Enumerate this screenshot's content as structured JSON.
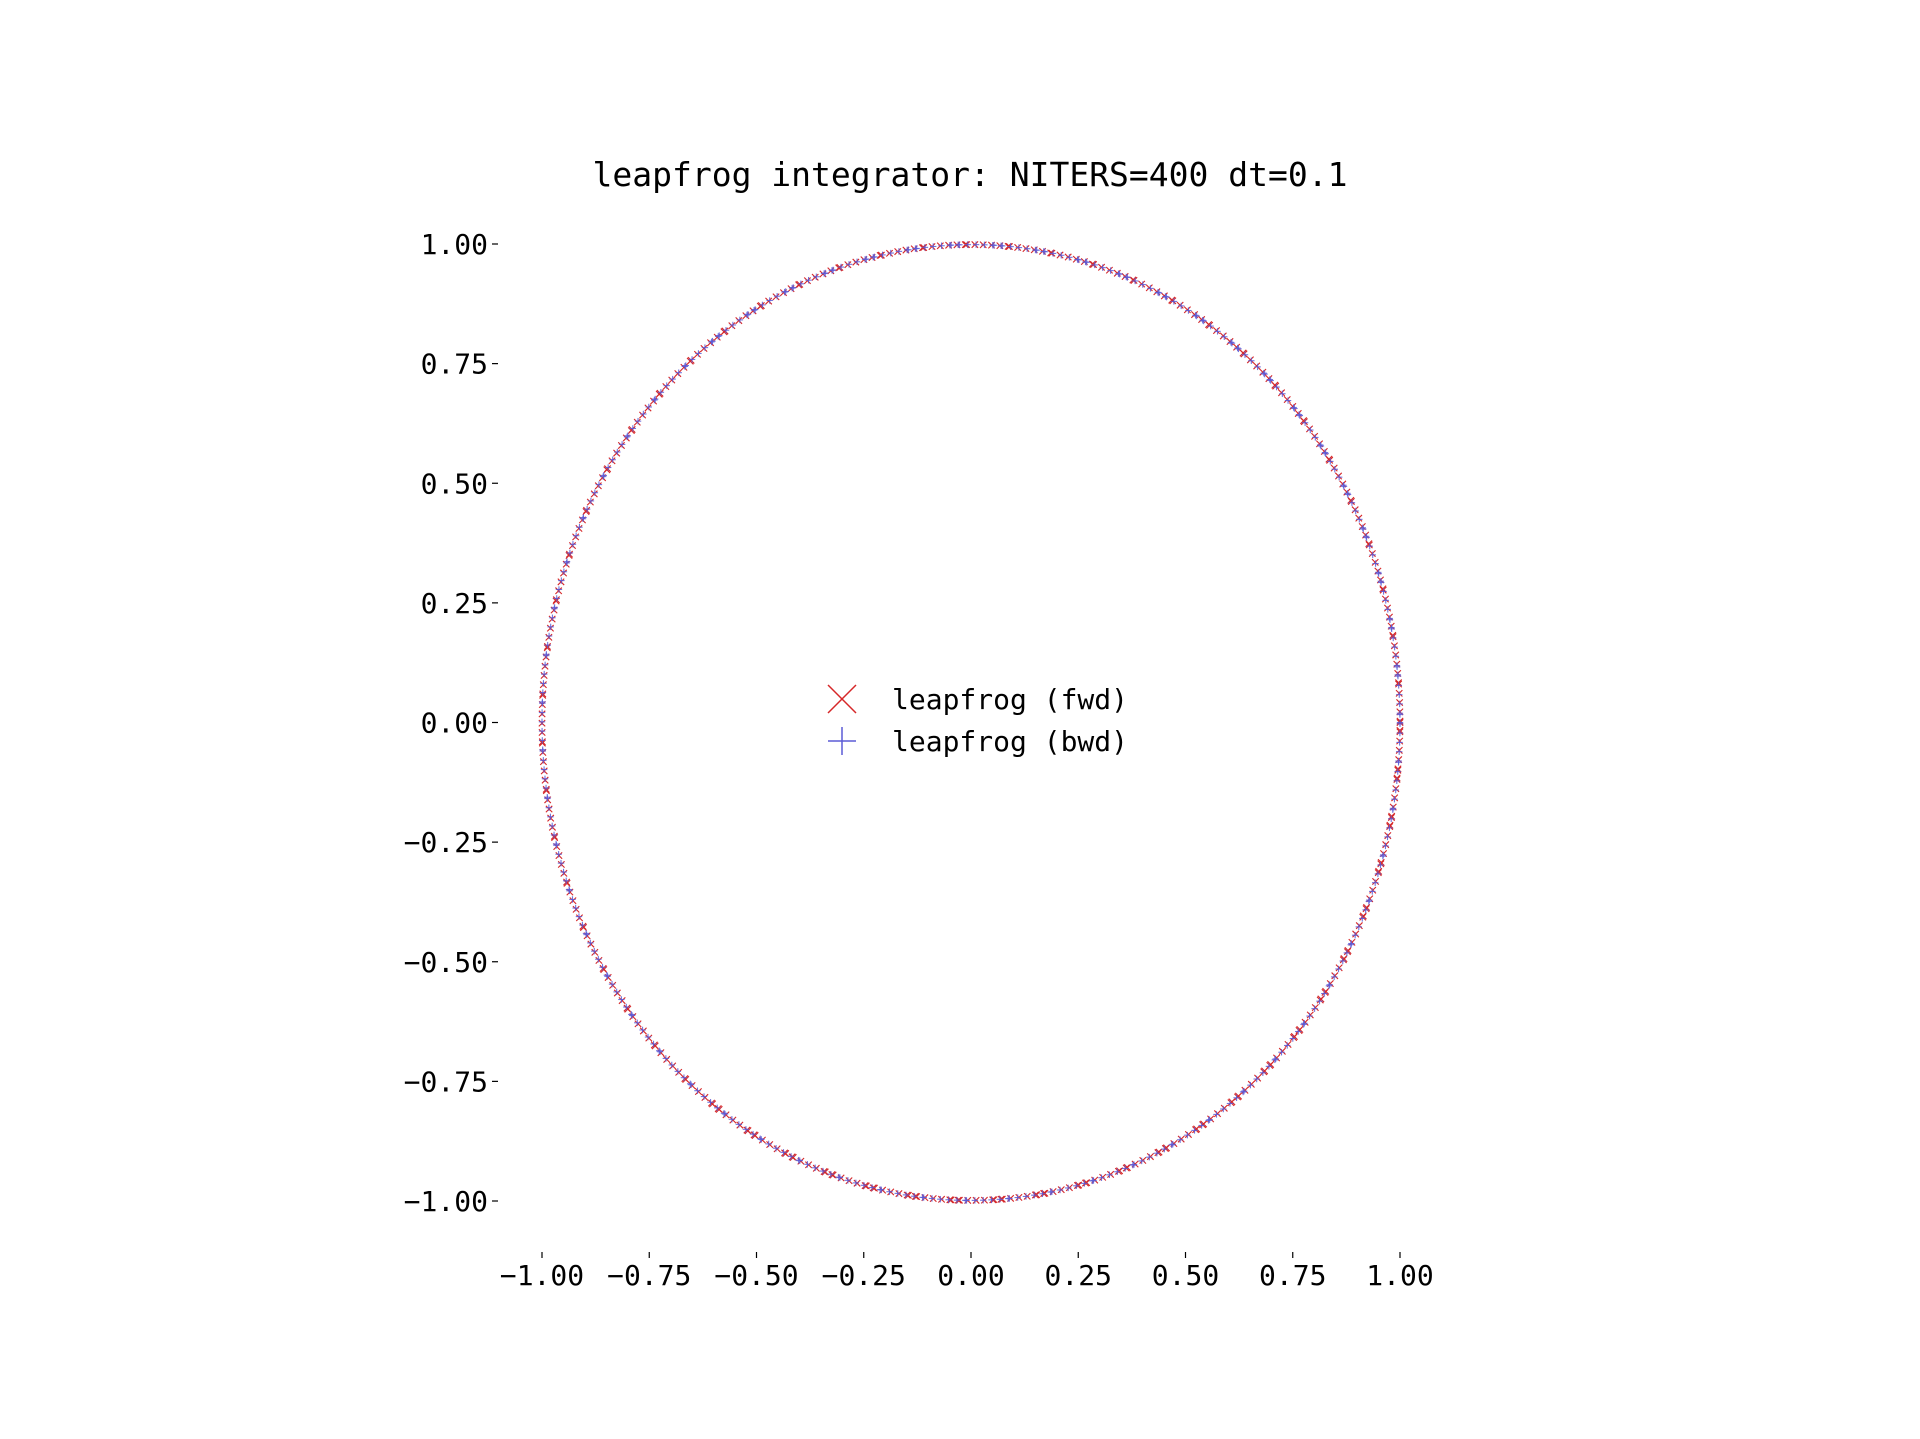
{
  "chart_data": {
    "type": "scatter",
    "title": "leapfrog integrator: NITERS=400 dt=0.1",
    "xlabel": "",
    "ylabel": "",
    "xlim": [
      -1.0,
      1.0
    ],
    "ylim": [
      -1.0,
      1.0
    ],
    "grid": false,
    "legend_position": "center",
    "x_ticks": [
      "−1.00",
      "−0.75",
      "−0.50",
      "−0.25",
      "0.00",
      "0.25",
      "0.50",
      "0.75",
      "1.00"
    ],
    "y_ticks": [
      "1.00",
      "0.75",
      "0.50",
      "0.25",
      "0.00",
      "−0.25",
      "−0.50",
      "−0.75",
      "−1.00"
    ],
    "x_tick_values": [
      -1.0,
      -0.75,
      -0.5,
      -0.25,
      0.0,
      0.25,
      0.5,
      0.75,
      1.0
    ],
    "y_tick_values": [
      1.0,
      0.75,
      0.5,
      0.25,
      0.0,
      -0.25,
      -0.5,
      -0.75,
      -1.0
    ],
    "iterations": 400,
    "dt": 0.1,
    "radius": 1.0,
    "series": [
      {
        "name": "leapfrog (fwd)",
        "marker": "x",
        "color": "#d62728"
      },
      {
        "name": "leapfrog (bwd)",
        "marker": "+",
        "color": "#5b5bd6"
      }
    ]
  }
}
